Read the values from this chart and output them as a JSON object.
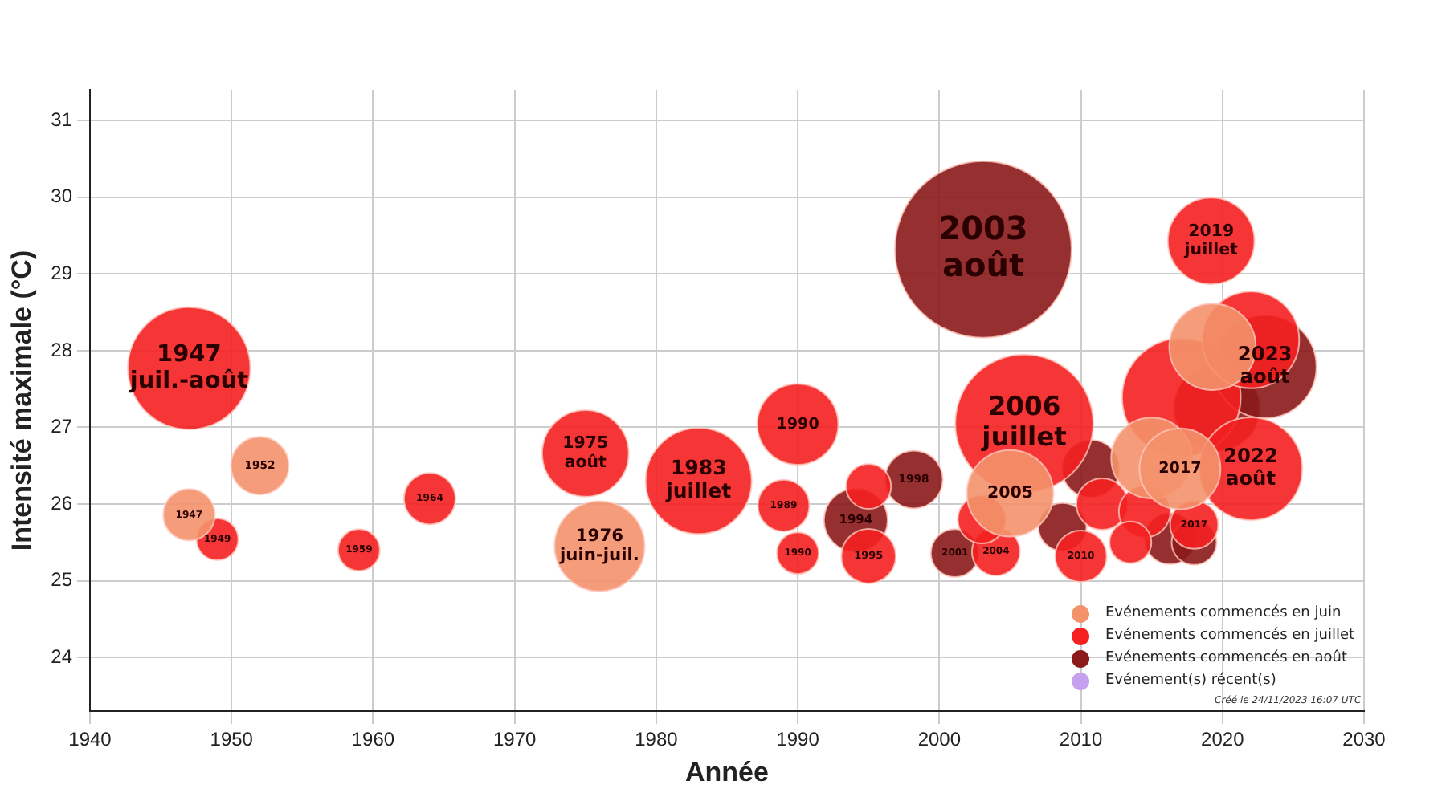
{
  "chart_data": {
    "type": "bubble",
    "xlabel": "Année",
    "ylabel": "Intensité maximale (°C)",
    "xlim": [
      1940,
      2030
    ],
    "xticks": [
      1940,
      1950,
      1960,
      1970,
      1980,
      1990,
      2000,
      2010,
      2020,
      2030
    ],
    "ylim": [
      23.3,
      31.4
    ],
    "yticks": [
      24,
      25,
      26,
      27,
      28,
      29,
      30,
      31
    ],
    "grid": true,
    "legend": "bottom right",
    "marker": "circle",
    "annotations": [
      "Créé le 24/11/2023 16:07 UTC",
      {
        "text": "1947",
        "x": 1947,
        "y": 25.86
      },
      {
        "text": "1952",
        "x": 1952,
        "y": 26.5
      },
      {
        "text": "1976\njuin-juil.",
        "x": 1976,
        "y": 25.45
      },
      {
        "text": "2005",
        "x": 2005,
        "y": 26.14
      },
      {
        "text": "2017",
        "x": 2017,
        "y": 26.46
      },
      {
        "text": "1947\njuil.-août",
        "x": 1947,
        "y": 27.77
      },
      {
        "text": "1949",
        "x": 1949,
        "y": 25.54
      },
      {
        "text": "1959",
        "x": 1959,
        "y": 25.4
      },
      {
        "text": "1964",
        "x": 1964,
        "y": 26.07
      },
      {
        "text": "1975\naoût",
        "x": 1975,
        "y": 26.66
      },
      {
        "text": "1983\njuillet",
        "x": 1983,
        "y": 26.3
      },
      {
        "text": "1990",
        "x": 1990,
        "y": 27.04
      },
      {
        "text": "1989",
        "x": 1989,
        "y": 25.98
      },
      {
        "text": "1990",
        "x": 1990,
        "y": 25.36
      },
      {
        "text": "1995",
        "x": 1995,
        "y": 25.32
      },
      {
        "text": "2006\njuillet",
        "x": 2006,
        "y": 27.05
      },
      {
        "text": "2004",
        "x": 2004,
        "y": 25.38
      },
      {
        "text": "2019\njuillet",
        "x": 2019.2,
        "y": 29.43
      },
      {
        "text": "2010",
        "x": 2010,
        "y": 25.32
      },
      {
        "text": "2017",
        "x": 2018,
        "y": 25.73
      },
      {
        "text": "2022\naoût",
        "x": 2022,
        "y": 26.46
      },
      {
        "text": "2003\naoût",
        "x": 2003.1,
        "y": 29.32
      },
      {
        "text": "1998",
        "x": 1998.2,
        "y": 26.32
      },
      {
        "text": "1994",
        "x": 1994.1,
        "y": 25.79
      },
      {
        "text": "2001",
        "x": 2001.1,
        "y": 25.36
      },
      {
        "text": "2023\naoût",
        "x": 2023,
        "y": 27.79
      }
    ],
    "series": [
      {
        "name": "Evénements commencés en juin",
        "color": "#f4926b",
        "x": [
          1947,
          1952,
          1976,
          2005,
          2015,
          2017,
          2019.3
        ],
        "values": [
          25.86,
          26.5,
          25.45,
          26.14,
          26.6,
          26.46,
          28.05
        ],
        "sizes": [
          0.085,
          0.107,
          0.26,
          0.24,
          0.21,
          0.21,
          0.24
        ]
      },
      {
        "name": "Evénements commencés en juillet",
        "color": "#f52020",
        "x": [
          1947,
          1949,
          1959,
          1964,
          1975,
          1983,
          1990,
          1989,
          1990,
          1995,
          1995,
          2006,
          2004,
          2003,
          2019.2,
          2010,
          2011.5,
          2014.5,
          2013.5,
          2017.1,
          2018,
          2022,
          2022
        ],
        "values": [
          27.77,
          25.54,
          25.4,
          26.07,
          26.66,
          26.3,
          27.04,
          25.98,
          25.36,
          26.23,
          25.32,
          27.05,
          25.38,
          25.8,
          29.43,
          25.32,
          26.0,
          25.9,
          25.5,
          27.39,
          25.73,
          28.14,
          26.46
        ],
        "sizes": [
          0.48,
          0.056,
          0.056,
          0.085,
          0.24,
          0.36,
          0.21,
          0.085,
          0.056,
          0.065,
          0.095,
          0.61,
          0.074,
          0.074,
          0.24,
          0.085,
          0.085,
          0.085,
          0.056,
          0.45,
          0.074,
          0.3,
          0.34
        ]
      },
      {
        "name": "Evénements commencés en août",
        "color": "#8b1a1a",
        "x": [
          2003.1,
          1998.2,
          1994.1,
          2001.1,
          2008.7,
          2010.7,
          2019.6,
          2016.3,
          2018,
          2023
        ],
        "values": [
          29.32,
          26.32,
          25.79,
          25.36,
          25.7,
          26.46,
          27.25,
          25.55,
          25.5,
          27.79
        ],
        "sizes": [
          1,
          0.107,
          0.13,
          0.074,
          0.074,
          0.107,
          0.24,
          0.085,
          0.065,
          0.34
        ]
      },
      {
        "name": "Evénement(s) récent(s)",
        "color": "#c8a0f0"
      }
    ]
  }
}
